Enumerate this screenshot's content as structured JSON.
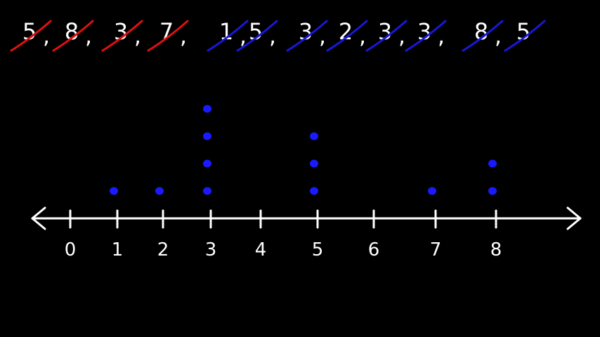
{
  "chart_data": {
    "type": "dot-plot",
    "title": "",
    "xlabel": "",
    "ylabel": "",
    "data_list": [
      "5",
      "8",
      "3",
      "7",
      "1",
      "5",
      "3",
      "2",
      "3",
      "3",
      "8",
      "5"
    ],
    "crossed_colors": [
      "red",
      "red",
      "red",
      "red",
      "blue",
      "blue",
      "blue",
      "blue",
      "blue",
      "blue",
      "blue",
      "blue"
    ],
    "ticks": [
      0,
      1,
      2,
      3,
      4,
      5,
      6,
      7,
      8
    ],
    "tick_labels": [
      "0",
      "1",
      "2",
      "3",
      "4",
      "5",
      "6",
      "7",
      "8"
    ],
    "counts": [
      {
        "x": 1,
        "count": 1
      },
      {
        "x": 2,
        "count": 1
      },
      {
        "x": 3,
        "count": 4
      },
      {
        "x": 5,
        "count": 3
      },
      {
        "x": 7,
        "count": 1
      },
      {
        "x": 8,
        "count": 2
      }
    ],
    "xlim": [
      0,
      8
    ],
    "grid": false,
    "legend": "none"
  },
  "colors": {
    "background": "#000000",
    "axis": "#ffffff",
    "dots": "#1a1aff",
    "strike_red": "#e01010",
    "strike_blue": "#1818d8"
  }
}
